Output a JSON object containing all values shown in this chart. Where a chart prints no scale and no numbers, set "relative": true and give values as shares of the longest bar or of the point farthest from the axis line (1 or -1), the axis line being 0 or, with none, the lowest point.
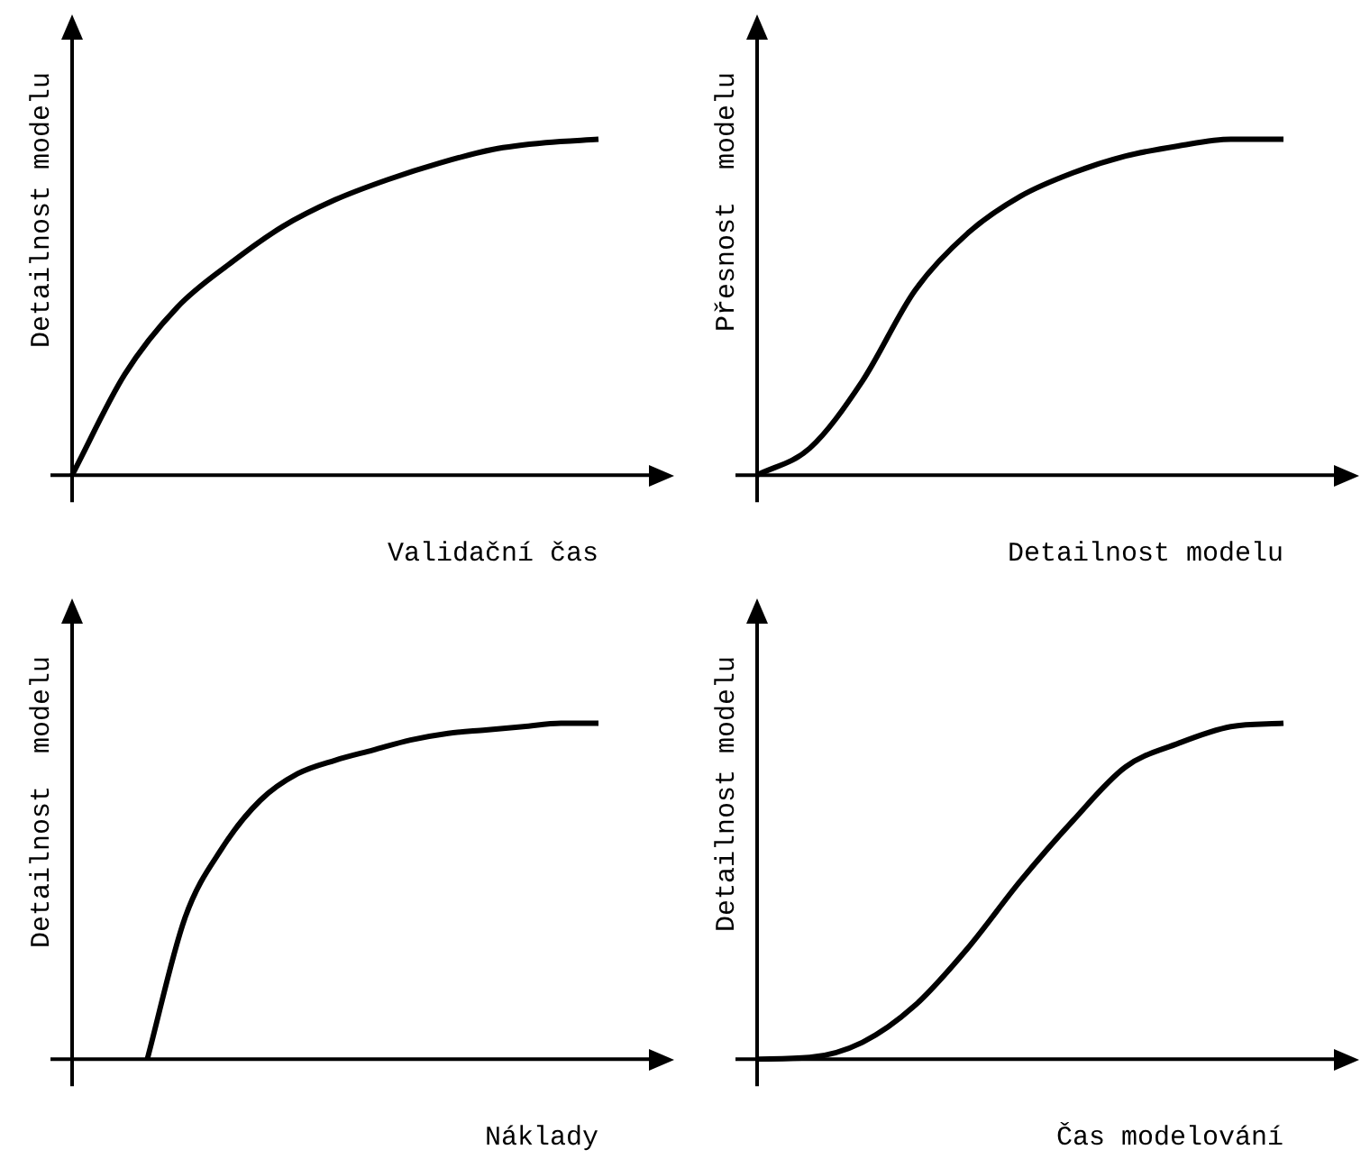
{
  "chart_data": [
    {
      "type": "line",
      "relative": true,
      "xlabel": "Validační čas",
      "ylabel": "Detailnost modelu",
      "categories": [
        null,
        null,
        null,
        null,
        null,
        null,
        null,
        null,
        null,
        null,
        null
      ],
      "series": [
        {
          "color": "#000000",
          "values": [
            0,
            0.3,
            0.5,
            0.63,
            0.74,
            0.82,
            0.88,
            0.93,
            0.97,
            0.99,
            1
          ]
        }
      ]
    },
    {
      "type": "line",
      "relative": true,
      "xlabel": "Detailnost modelu",
      "ylabel": "Přesnost  modelu",
      "categories": [
        null,
        null,
        null,
        null,
        null,
        null,
        null,
        null,
        null,
        null,
        null
      ],
      "series": [
        {
          "color": "#000000",
          "values": [
            0,
            0.08,
            0.28,
            0.55,
            0.72,
            0.83,
            0.9,
            0.95,
            0.98,
            1,
            1
          ]
        }
      ]
    },
    {
      "type": "line",
      "relative": true,
      "xlabel": "Náklady",
      "ylabel": "Detailnost  modelu",
      "categories": [
        null,
        null,
        null,
        null,
        null,
        null,
        null,
        null,
        null,
        null,
        null,
        null,
        null,
        null,
        null
      ],
      "series": [
        {
          "color": "#000000",
          "values": [
            null,
            null,
            0,
            0.42,
            0.63,
            0.77,
            0.85,
            0.89,
            0.92,
            0.95,
            0.97,
            0.98,
            0.99,
            1,
            1
          ]
        }
      ]
    },
    {
      "type": "line",
      "relative": true,
      "xlabel": "Čas modelování",
      "ylabel": "Detailnost modelu",
      "categories": [
        null,
        null,
        null,
        null,
        null,
        null,
        null,
        null,
        null,
        null,
        null
      ],
      "series": [
        {
          "color": "#000000",
          "values": [
            0,
            0.005,
            0.05,
            0.16,
            0.33,
            0.53,
            0.71,
            0.87,
            0.94,
            0.99,
            1
          ]
        }
      ]
    }
  ]
}
